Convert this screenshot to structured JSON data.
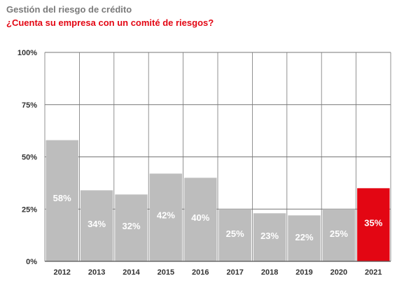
{
  "header": {
    "title": "Gestión del riesgo de crédito",
    "subtitle": "¿Cuenta su empresa con un comité de riesgos?"
  },
  "colors": {
    "bar": "#bdbdbd",
    "highlight": "#e30613",
    "grid": "#777777",
    "title": "#7a7a7a",
    "subtitle": "#e30613",
    "bar_label": "#ffffff"
  },
  "chart_data": {
    "type": "bar",
    "title": "¿Cuenta su empresa con un comité de riesgos?",
    "categories": [
      "2012",
      "2013",
      "2014",
      "2015",
      "2016",
      "2017",
      "2018",
      "2019",
      "2020",
      "2021"
    ],
    "values": [
      58,
      34,
      32,
      42,
      40,
      25,
      23,
      22,
      25,
      35
    ],
    "data_labels": [
      "58%",
      "34%",
      "32%",
      "42%",
      "40%",
      "25%",
      "23%",
      "22%",
      "25%",
      "35%"
    ],
    "highlight_category": "2021",
    "ylim": [
      0,
      100
    ],
    "yticks": [
      0,
      25,
      50,
      75,
      100
    ],
    "ytick_labels": [
      "0%",
      "25%",
      "50%",
      "75%",
      "100%"
    ],
    "xlabel": "",
    "ylabel": "",
    "grid": true,
    "legend": "none"
  }
}
